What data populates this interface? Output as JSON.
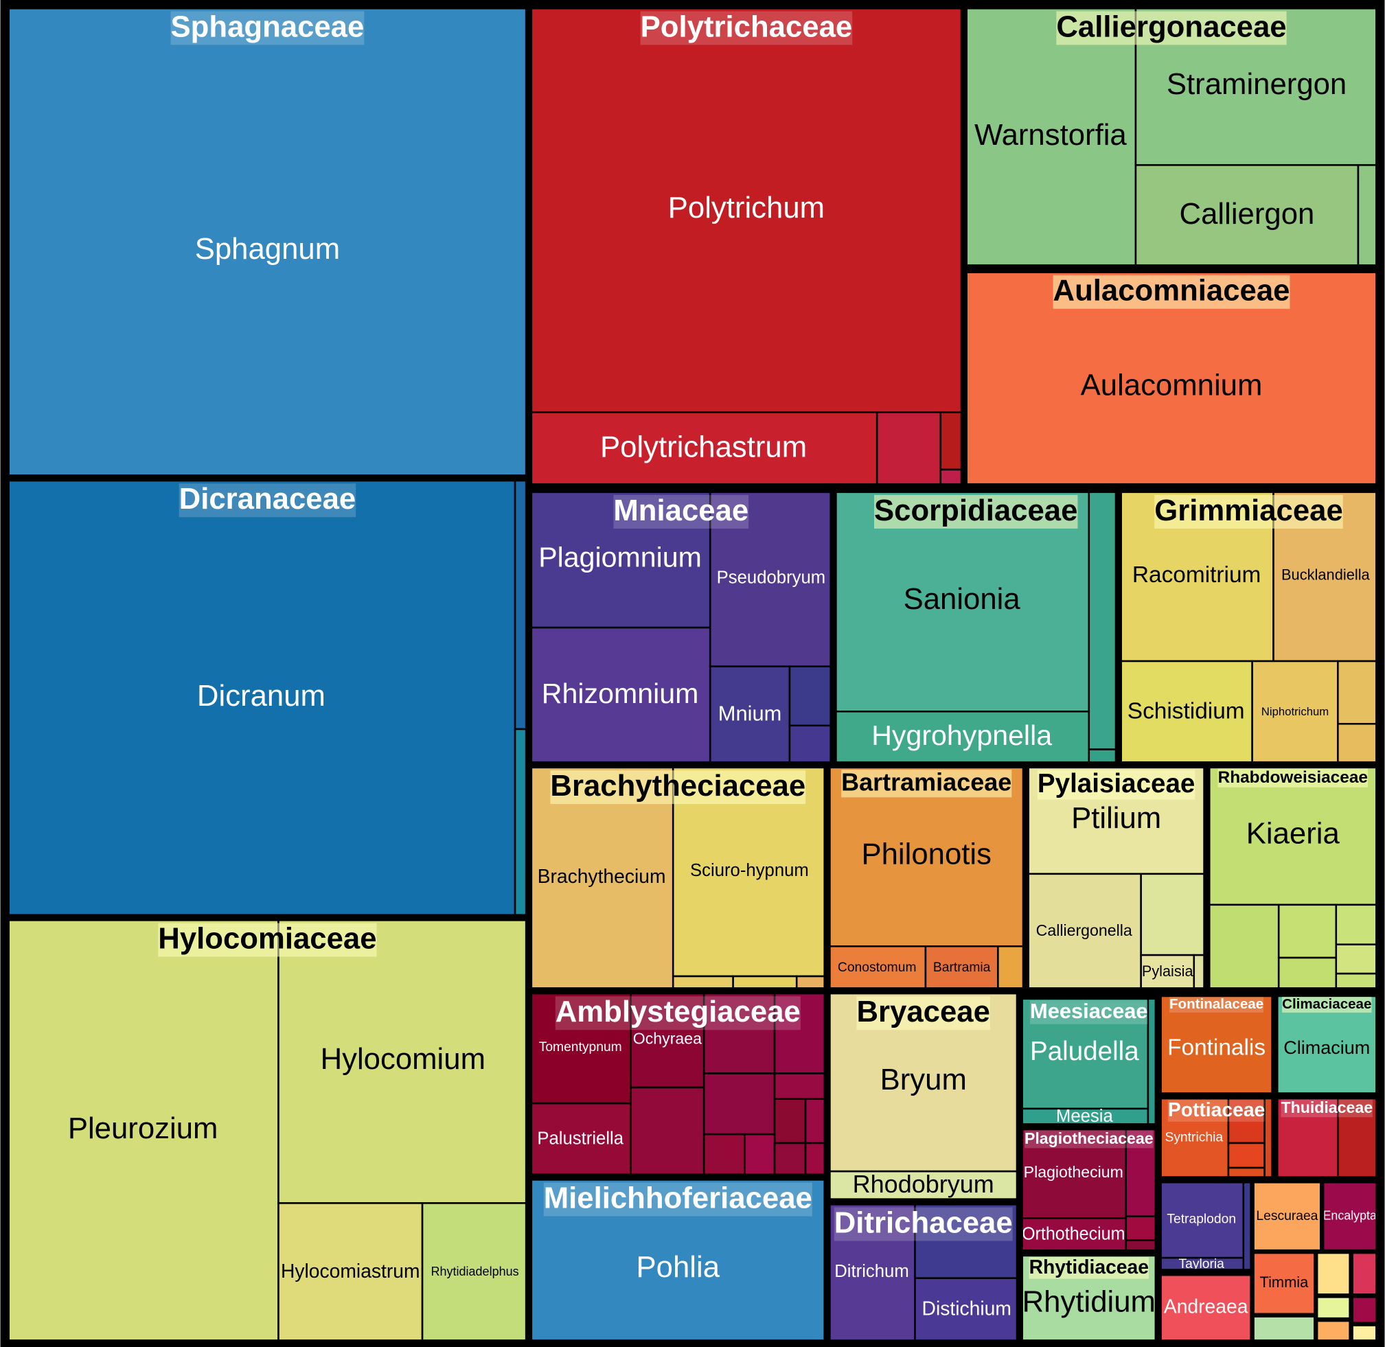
{
  "chart_data": {
    "type": "treemap",
    "families": [
      {
        "name": "Sphagnaceae",
        "color": "#3389bf",
        "genera": [
          {
            "name": "Sphagnum",
            "color": "#3389bf"
          }
        ]
      },
      {
        "name": "Dicranaceae",
        "color": "#1470ab",
        "genera": [
          {
            "name": "Dicranum",
            "color": "#1470ab"
          },
          {
            "name": null,
            "color": "#1a6aa8"
          },
          {
            "name": null,
            "color": "#1a8aa0"
          }
        ]
      },
      {
        "name": "Hylocomiaceae",
        "color": "#d3de7a",
        "genera": [
          {
            "name": "Pleurozium",
            "color": "#d3de7a"
          },
          {
            "name": "Hylocomium",
            "color": "#d3de7a"
          },
          {
            "name": "Hylocomiastrum",
            "color": "#dfdb7a"
          },
          {
            "name": "Rhytidiadelphus",
            "color": "#c2dd7a"
          }
        ]
      },
      {
        "name": "Polytrichaceae",
        "color": "#c21d23",
        "genera": [
          {
            "name": "Polytrichum",
            "color": "#c21d23"
          },
          {
            "name": "Polytrichastrum",
            "color": "#c8202d"
          },
          {
            "name": null,
            "color": "#c41f3a"
          },
          {
            "name": null,
            "color": "#b71c1c"
          },
          {
            "name": null,
            "color": "#c01e4a"
          }
        ]
      },
      {
        "name": "Calliergonaceae",
        "color": "#8ac685",
        "genera": [
          {
            "name": "Warnstorfia",
            "color": "#8ac685"
          },
          {
            "name": "Straminergon",
            "color": "#8ac685"
          },
          {
            "name": "Calliergon",
            "color": "#96c680"
          },
          {
            "name": null,
            "color": "#8fc683"
          }
        ]
      },
      {
        "name": "Aulacomniaceae",
        "color": "#f46d43",
        "genera": [
          {
            "name": "Aulacomnium",
            "color": "#f46d43"
          }
        ]
      },
      {
        "name": "Mniaceae",
        "color": "#4b3b8f",
        "genera": [
          {
            "name": "Plagiomnium",
            "color": "#4a3a90"
          },
          {
            "name": "Rhizomnium",
            "color": "#573a93"
          },
          {
            "name": "Pseudobryum",
            "color": "#51398e"
          },
          {
            "name": "Mnium",
            "color": "#443a8e"
          },
          {
            "name": null,
            "color": "#3c3a8a"
          },
          {
            "name": null,
            "color": "#443890"
          }
        ]
      },
      {
        "name": "Scorpidiaceae",
        "color": "#4cb097",
        "genera": [
          {
            "name": "Sanionia",
            "color": "#4cb097"
          },
          {
            "name": "Hygrohypnella",
            "color": "#3fa98a"
          },
          {
            "name": null,
            "color": "#3aa58c"
          },
          {
            "name": null,
            "color": "#35a088"
          }
        ]
      },
      {
        "name": "Grimmiaceae",
        "color": "#e4cf63",
        "genera": [
          {
            "name": "Racomitrium",
            "color": "#e6d464"
          },
          {
            "name": "Bucklandiella",
            "color": "#e7b765"
          },
          {
            "name": "Schistidium",
            "color": "#e3dc62"
          },
          {
            "name": "Niphotrichum",
            "color": "#e8c662"
          },
          {
            "name": null,
            "color": "#e6c060"
          },
          {
            "name": null,
            "color": "#e7bc5e"
          }
        ]
      },
      {
        "name": "Brachytheciaceae",
        "color": "#e8c262",
        "genera": [
          {
            "name": "Brachythecium",
            "color": "#e7bc66"
          },
          {
            "name": "Sciuro-hypnum",
            "color": "#e6d566"
          },
          {
            "name": null,
            "color": "#e8cc66"
          },
          {
            "name": null,
            "color": "#e6d060"
          },
          {
            "name": null,
            "color": "#e8b060"
          }
        ]
      },
      {
        "name": "Bartramiaceae",
        "color": "#e6953e",
        "genera": [
          {
            "name": "Philonotis",
            "color": "#e6953e"
          },
          {
            "name": "Conostomum",
            "color": "#ea7e3a"
          },
          {
            "name": "Bartramia",
            "color": "#e67139"
          },
          {
            "name": null,
            "color": "#e8a540"
          }
        ]
      },
      {
        "name": "Pylaisiaceae",
        "color": "#e7e39e",
        "genera": [
          {
            "name": "Ptilium",
            "color": "#e8e6a0"
          },
          {
            "name": "Calliergonella",
            "color": "#e3de9a"
          },
          {
            "name": null,
            "color": "#dde59c"
          },
          {
            "name": "Pylaisia",
            "color": "#e6e2a0"
          },
          {
            "name": null,
            "color": "#e0e0a0"
          }
        ]
      },
      {
        "name": "Rhabdoweisiaceae",
        "color": "#c3df73",
        "genera": [
          {
            "name": "Kiaeria",
            "color": "#c3df73"
          },
          {
            "name": null,
            "color": "#c0dd72"
          },
          {
            "name": null,
            "color": "#c6e074"
          },
          {
            "name": null,
            "color": "#c2de70"
          },
          {
            "name": null,
            "color": "#cae27a"
          },
          {
            "name": null,
            "color": "#d2e480"
          },
          {
            "name": null,
            "color": "#c8e078"
          }
        ]
      },
      {
        "name": "Amblystegiaceae",
        "color": "#8e0a35",
        "genera": [
          {
            "name": "Tomentypnum",
            "color": "#8a0028"
          },
          {
            "name": "Ochyraea",
            "color": "#8c0533"
          },
          {
            "name": "Palustriella",
            "color": "#960a38"
          },
          {
            "name": null,
            "color": "#920a3a"
          },
          {
            "name": null,
            "color": "#8f0a3e"
          },
          {
            "name": null,
            "color": "#950846"
          },
          {
            "name": null,
            "color": "#8f0a40"
          },
          {
            "name": null,
            "color": "#980a42"
          },
          {
            "name": null,
            "color": "#8a0a32"
          },
          {
            "name": null,
            "color": "#9a0a44"
          },
          {
            "name": null,
            "color": "#960a3a"
          },
          {
            "name": null,
            "color": "#a00a48"
          },
          {
            "name": null,
            "color": "#900a3a"
          },
          {
            "name": null,
            "color": "#9c0a40"
          }
        ]
      },
      {
        "name": "Mielichhoferiaceae",
        "color": "#3389bf",
        "genera": [
          {
            "name": "Pohlia",
            "color": "#3389bf"
          }
        ]
      },
      {
        "name": "Bryaceae",
        "color": "#e7dc9b",
        "genera": [
          {
            "name": "Bryum",
            "color": "#e7dc9b"
          },
          {
            "name": "Rhodobryum",
            "color": "#dbe6a4"
          }
        ]
      },
      {
        "name": "Ditrichaceae",
        "color": "#4c3b93",
        "genera": [
          {
            "name": "Ditrichum",
            "color": "#573a93"
          },
          {
            "name": null,
            "color": "#3f3b90"
          },
          {
            "name": "Distichium",
            "color": "#4a3a95"
          }
        ]
      },
      {
        "name": "Meesiaceae",
        "color": "#37a08a",
        "genera": [
          {
            "name": "Paludella",
            "color": "#3da58c"
          },
          {
            "name": "Meesia",
            "color": "#30a08c"
          },
          {
            "name": null,
            "color": "#2c9a88"
          }
        ]
      },
      {
        "name": "Plagiotheciaceae",
        "color": "#8c0a3b",
        "genera": [
          {
            "name": "Plagiothecium",
            "color": "#8e0a39"
          },
          {
            "name": "Orthothecium",
            "color": "#960a40"
          },
          {
            "name": null,
            "color": "#9a0a48"
          },
          {
            "name": null,
            "color": "#a00a3e"
          },
          {
            "name": null,
            "color": "#880a36"
          }
        ]
      },
      {
        "name": "Rhytidiaceae",
        "color": "#a8dca0",
        "genera": [
          {
            "name": "Rhytidium",
            "color": "#a8dca0"
          }
        ]
      },
      {
        "name": "Fontinalaceae",
        "color": "#e0631f",
        "genera": [
          {
            "name": "Fontinalis",
            "color": "#e0631f"
          }
        ]
      },
      {
        "name": "Climaciaceae",
        "color": "#5cc3a0",
        "genera": [
          {
            "name": "Climacium",
            "color": "#5cc3a0"
          }
        ]
      },
      {
        "name": "Pottiaceae",
        "color": "#e35524",
        "genera": [
          {
            "name": "Syntrichia",
            "color": "#e35524"
          },
          {
            "name": null,
            "color": "#d93a1e"
          },
          {
            "name": null,
            "color": "#e54620"
          },
          {
            "name": null,
            "color": "#e0501f"
          },
          {
            "name": null,
            "color": "#d84a1c"
          }
        ]
      },
      {
        "name": "Thuidiaceae",
        "color": "#c9283f",
        "genera": [
          {
            "name": null,
            "color": "#c8223f"
          },
          {
            "name": null,
            "color": "#bb2020"
          }
        ]
      },
      {
        "name": null,
        "color": "#4b3b93",
        "genera": [
          {
            "name": "Tetraplodon",
            "color": "#4b3b93"
          },
          {
            "name": "Tayloria",
            "color": "#443a8e"
          },
          {
            "name": null,
            "color": "#3a3a88"
          }
        ]
      },
      {
        "name": null,
        "color": "#f0505a",
        "genera": [
          {
            "name": "Andreaea",
            "color": "#f0505a"
          }
        ]
      },
      {
        "name": null,
        "color": "#fca55c",
        "genera": [
          {
            "name": "Lescuraea",
            "color": "#fca55c"
          }
        ]
      },
      {
        "name": null,
        "color": "#9b0a4a",
        "genera": [
          {
            "name": "Encalypta",
            "color": "#9b0a4a"
          }
        ]
      },
      {
        "name": null,
        "color": "#f56b43",
        "genera": [
          {
            "name": "Timmia",
            "color": "#f56b43"
          }
        ]
      },
      {
        "name": null,
        "color": "#b5e0a8",
        "genera": [
          {
            "name": null,
            "color": "#b5e0a8"
          }
        ]
      },
      {
        "name": null,
        "color": "#ffe08a",
        "genera": [
          {
            "name": null,
            "color": "#ffe08a"
          }
        ]
      },
      {
        "name": null,
        "color": "#da3458",
        "genera": [
          {
            "name": null,
            "color": "#da3458"
          }
        ]
      },
      {
        "name": null,
        "color": "#e6f59a",
        "genera": [
          {
            "name": null,
            "color": "#e6f59a"
          }
        ]
      },
      {
        "name": null,
        "color": "#a00a46",
        "genera": [
          {
            "name": null,
            "color": "#a00a46"
          }
        ]
      },
      {
        "name": null,
        "color": "#fdae61",
        "genera": [
          {
            "name": null,
            "color": "#fdae61"
          }
        ]
      },
      {
        "name": null,
        "color": "#fef0a0",
        "genera": [
          {
            "name": null,
            "color": "#fef0a0"
          }
        ]
      }
    ]
  }
}
